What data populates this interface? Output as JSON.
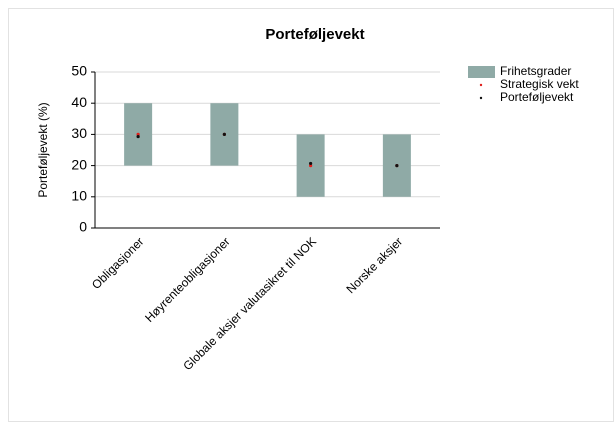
{
  "chart_data": {
    "type": "range",
    "title": "Porteføljevekt",
    "y_label": "Porteføljevekt (%)",
    "categories": [
      "Obligasjoner",
      "Høyrenteobligasjoner",
      "Globale aksjer valutasikret til NOK",
      "Norske aksjer"
    ],
    "series": [
      {
        "name": "Frihetsgrader",
        "color": "#8faaa6",
        "low": [
          20,
          20,
          10,
          10
        ],
        "high": [
          40,
          40,
          30,
          30
        ]
      },
      {
        "name": "Strategisk vekt",
        "color": "#e0201c",
        "values": [
          30,
          30,
          20,
          20
        ]
      },
      {
        "name": "Porteføljevekt",
        "color": "#111111",
        "values": [
          29.3,
          30,
          20.7,
          20
        ]
      }
    ],
    "ylim": [
      0,
      50
    ],
    "yticks": [
      0,
      10,
      20,
      30,
      40,
      50
    ],
    "grid": true,
    "legend": "right"
  }
}
